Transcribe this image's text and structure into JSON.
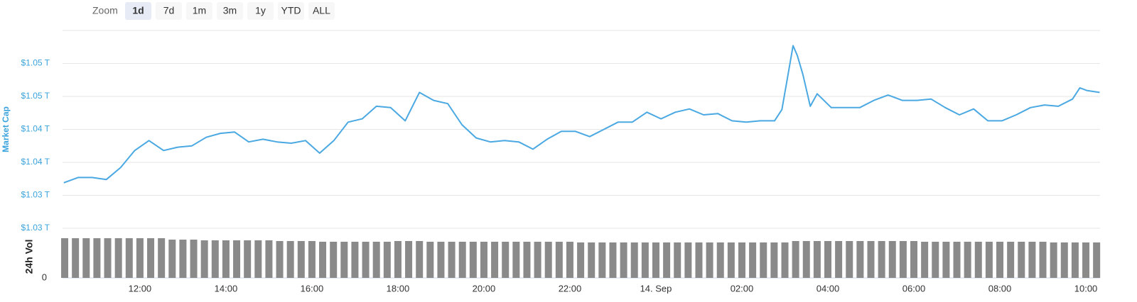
{
  "range_selector": {
    "label": "Zoom",
    "options": [
      "1d",
      "7d",
      "1m",
      "3m",
      "1y",
      "YTD",
      "ALL"
    ],
    "selected": 0
  },
  "chart_data": [
    {
      "type": "line",
      "y_label": "Market Cap",
      "color": "#4aa8e2",
      "grid": true,
      "xlim": [
        10.2,
        34.33
      ],
      "ylim": [
        1.025,
        1.055
      ],
      "yticks": [
        {
          "value": 1.025,
          "label": "$1.03 T"
        },
        {
          "value": 1.03,
          "label": "$1.03 T"
        },
        {
          "value": 1.035,
          "label": "$1.04 T"
        },
        {
          "value": 1.04,
          "label": "$1.04 T"
        },
        {
          "value": 1.045,
          "label": "$1.05 T"
        },
        {
          "value": 1.05,
          "label": "$1.05 T"
        }
      ],
      "x": [
        10.23,
        10.56,
        10.89,
        11.22,
        11.55,
        11.88,
        12.21,
        12.55,
        12.88,
        13.21,
        13.54,
        13.87,
        14.2,
        14.53,
        14.86,
        15.19,
        15.52,
        15.85,
        16.18,
        16.51,
        16.84,
        17.17,
        17.5,
        17.83,
        18.17,
        18.5,
        18.83,
        19.16,
        19.49,
        19.82,
        20.15,
        20.48,
        20.81,
        21.14,
        21.47,
        21.8,
        22.13,
        22.46,
        22.79,
        23.12,
        23.45,
        23.79,
        24.12,
        24.45,
        24.78,
        25.11,
        25.44,
        25.77,
        26.1,
        26.43,
        26.76,
        26.93,
        27.06,
        27.19,
        27.29,
        27.42,
        27.59,
        27.75,
        28.08,
        28.41,
        28.74,
        29.07,
        29.4,
        29.73,
        30.07,
        30.4,
        30.73,
        31.06,
        31.39,
        31.72,
        32.05,
        32.38,
        32.71,
        33.04,
        33.36,
        33.69,
        33.86,
        34.02,
        34.32
      ],
      "values": [
        1.0319,
        1.0327,
        1.0327,
        1.0324,
        1.0342,
        1.0368,
        1.0383,
        1.0368,
        1.0373,
        1.0375,
        1.0388,
        1.0394,
        1.0396,
        1.0381,
        1.0385,
        1.0381,
        1.0379,
        1.0383,
        1.0364,
        1.0383,
        1.0411,
        1.0416,
        1.0435,
        1.0433,
        1.0413,
        1.0456,
        1.0444,
        1.0439,
        1.0407,
        1.0387,
        1.0381,
        1.0383,
        1.0381,
        1.037,
        1.0385,
        1.0397,
        1.0397,
        1.0389,
        1.04,
        1.0411,
        1.0411,
        1.0426,
        1.0416,
        1.0426,
        1.0431,
        1.0422,
        1.0424,
        1.0413,
        1.0411,
        1.0413,
        1.0413,
        1.043,
        1.0478,
        1.0527,
        1.0512,
        1.0483,
        1.0435,
        1.0454,
        1.0433,
        1.0433,
        1.0433,
        1.0444,
        1.0452,
        1.0444,
        1.0444,
        1.0446,
        1.0433,
        1.0422,
        1.0431,
        1.0413,
        1.0413,
        1.0422,
        1.0433,
        1.0437,
        1.0435,
        1.0446,
        1.0463,
        1.0459,
        1.0456
      ]
    },
    {
      "type": "bar",
      "y_label": "24h Vol",
      "color": "#8a8a8a",
      "xlim": [
        10.2,
        34.33
      ],
      "ylim": [
        0,
        60
      ],
      "yticks": [
        0
      ],
      "xticks": [
        {
          "value": 12,
          "label": "12:00"
        },
        {
          "value": 14,
          "label": "14:00"
        },
        {
          "value": 16,
          "label": "16:00"
        },
        {
          "value": 18,
          "label": "18:00"
        },
        {
          "value": 20,
          "label": "20:00"
        },
        {
          "value": 22,
          "label": "22:00"
        },
        {
          "value": 24,
          "label": "14. Sep"
        },
        {
          "value": 26,
          "label": "02:00"
        },
        {
          "value": 28,
          "label": "04:00"
        },
        {
          "value": 30,
          "label": "06:00"
        },
        {
          "value": 32,
          "label": "08:00"
        },
        {
          "value": 34,
          "label": "10:00"
        }
      ],
      "x": [
        10.25,
        10.5,
        10.75,
        11,
        11.25,
        11.5,
        11.75,
        12,
        12.25,
        12.5,
        12.75,
        13,
        13.25,
        13.5,
        13.75,
        14,
        14.25,
        14.5,
        14.75,
        15,
        15.25,
        15.5,
        15.75,
        16,
        16.25,
        16.5,
        16.75,
        17,
        17.25,
        17.5,
        17.75,
        18,
        18.25,
        18.5,
        18.75,
        19,
        19.25,
        19.5,
        19.75,
        20,
        20.25,
        20.5,
        20.75,
        21,
        21.25,
        21.5,
        21.75,
        22,
        22.25,
        22.5,
        22.75,
        23,
        23.25,
        23.5,
        23.75,
        24,
        24.25,
        24.5,
        24.75,
        25,
        25.25,
        25.5,
        25.75,
        26,
        26.25,
        26.5,
        26.75,
        27,
        27.25,
        27.5,
        27.75,
        28,
        28.25,
        28.5,
        28.75,
        29,
        29.25,
        29.5,
        29.75,
        30,
        30.25,
        30.5,
        30.75,
        31,
        31.25,
        31.5,
        31.75,
        32,
        32.25,
        32.5,
        32.75,
        33,
        33.25,
        33.5,
        33.75,
        34,
        34.25
      ],
      "values": [
        56,
        56,
        56,
        56,
        56,
        56,
        56,
        56,
        56,
        56,
        54,
        54,
        54,
        53,
        53,
        53,
        53,
        53,
        53,
        53,
        52,
        52,
        52,
        52,
        51,
        51,
        51,
        51,
        51,
        51,
        51,
        52,
        52,
        52,
        51,
        51,
        51,
        51,
        51,
        51,
        51,
        51,
        51,
        51,
        51,
        51,
        51,
        51,
        50,
        50,
        50,
        50,
        50,
        50,
        50,
        50,
        50,
        50,
        50,
        50,
        50,
        50,
        50,
        50,
        50,
        50,
        50,
        50,
        52,
        52,
        52,
        52,
        52,
        52,
        52,
        52,
        52,
        52,
        52,
        52,
        51,
        51,
        51,
        51,
        51,
        51,
        51,
        51,
        51,
        51,
        51,
        51,
        50,
        50,
        50,
        50,
        50
      ]
    }
  ]
}
